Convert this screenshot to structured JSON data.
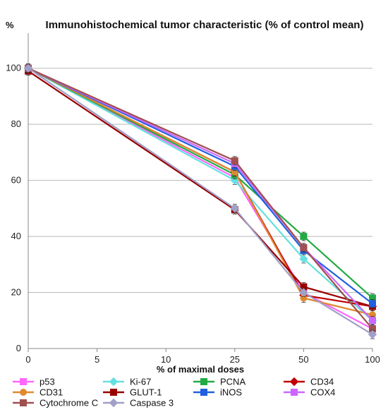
{
  "chart_data": {
    "type": "line",
    "title": "Immunohistochemical tumor characteristic (% of control mean)",
    "xlabel": "% of maximal doses",
    "ylabel": "%",
    "x": [
      0,
      25,
      50,
      100
    ],
    "x_tick_labels": [
      "0",
      "5",
      "10",
      "25",
      "50",
      "100"
    ],
    "x_tick_values": [
      0,
      5,
      10,
      25,
      50,
      100
    ],
    "ylim": [
      0,
      110
    ],
    "y_ticks": [
      0,
      20,
      40,
      60,
      80,
      100
    ],
    "y_tick_labels": [
      "0",
      "20",
      "40",
      "60",
      "80",
      "100"
    ],
    "grid": true,
    "legend_position": "bottom",
    "series": [
      {
        "name": "p53",
        "color": "#ff66ff",
        "marker": "square",
        "values": [
          100,
          61,
          20,
          7
        ]
      },
      {
        "name": "Ki-67",
        "color": "#66e0e0",
        "marker": "diamond",
        "values": [
          100,
          60,
          32,
          10
        ]
      },
      {
        "name": "PCNA",
        "color": "#22aa44",
        "marker": "square",
        "values": [
          100,
          62,
          40,
          18
        ]
      },
      {
        "name": "CD34",
        "color": "#c00000",
        "marker": "diamond",
        "values": [
          100,
          63,
          19,
          15
        ]
      },
      {
        "name": "CD31",
        "color": "#e08a30",
        "marker": "circle",
        "values": [
          100,
          63,
          18,
          12
        ]
      },
      {
        "name": "GLUT-1",
        "color": "#990000",
        "marker": "square",
        "values": [
          99,
          49.5,
          22,
          15
        ]
      },
      {
        "name": "iNOS",
        "color": "#2060e0",
        "marker": "square",
        "values": [
          100,
          65,
          35,
          16
        ]
      },
      {
        "name": "COX4",
        "color": "#cc66ff",
        "marker": "square",
        "values": [
          100,
          66,
          36,
          10
        ]
      },
      {
        "name": "Cytochrome C",
        "color": "#a05050",
        "marker": "square",
        "values": [
          100,
          67,
          36,
          7
        ]
      },
      {
        "name": "Caspase 3",
        "color": "#a0a0c8",
        "marker": "diamond",
        "values": [
          100,
          50,
          20,
          5
        ]
      }
    ]
  }
}
